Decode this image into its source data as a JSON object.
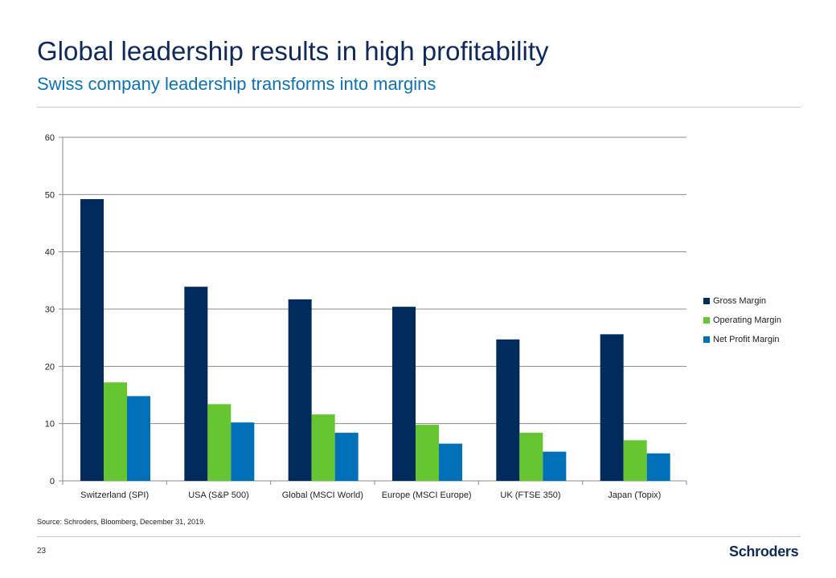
{
  "slide": {
    "title": "Global leadership results in high profitability",
    "subtitle": "Swiss company leadership transforms into margins",
    "source": "Source: Schroders, Bloomberg, December 31, 2019.",
    "page_number": "23",
    "brand": "Schroders"
  },
  "chart_data": {
    "type": "bar",
    "title": "",
    "xlabel": "",
    "ylabel": "",
    "ylim": [
      0,
      60
    ],
    "yticks": [
      0,
      10,
      20,
      30,
      40,
      50,
      60
    ],
    "grid": true,
    "legend_position": "right",
    "categories": [
      "Switzerland (SPI)",
      "USA (S&P 500)",
      "Global (MSCI World)",
      "Europe (MSCI Europe)",
      "UK (FTSE 350)",
      "Japan (Topix)"
    ],
    "series": [
      {
        "name": "Gross Margin",
        "color": "#002b5c",
        "values": [
          49.2,
          33.9,
          31.7,
          30.4,
          24.7,
          25.6
        ]
      },
      {
        "name": "Operating Margin",
        "color": "#66c632",
        "values": [
          17.2,
          13.4,
          11.6,
          9.8,
          8.4,
          7.1
        ]
      },
      {
        "name": "Net Profit Margin",
        "color": "#0070b8",
        "values": [
          14.8,
          10.2,
          8.4,
          6.5,
          5.1,
          4.8
        ]
      }
    ]
  }
}
